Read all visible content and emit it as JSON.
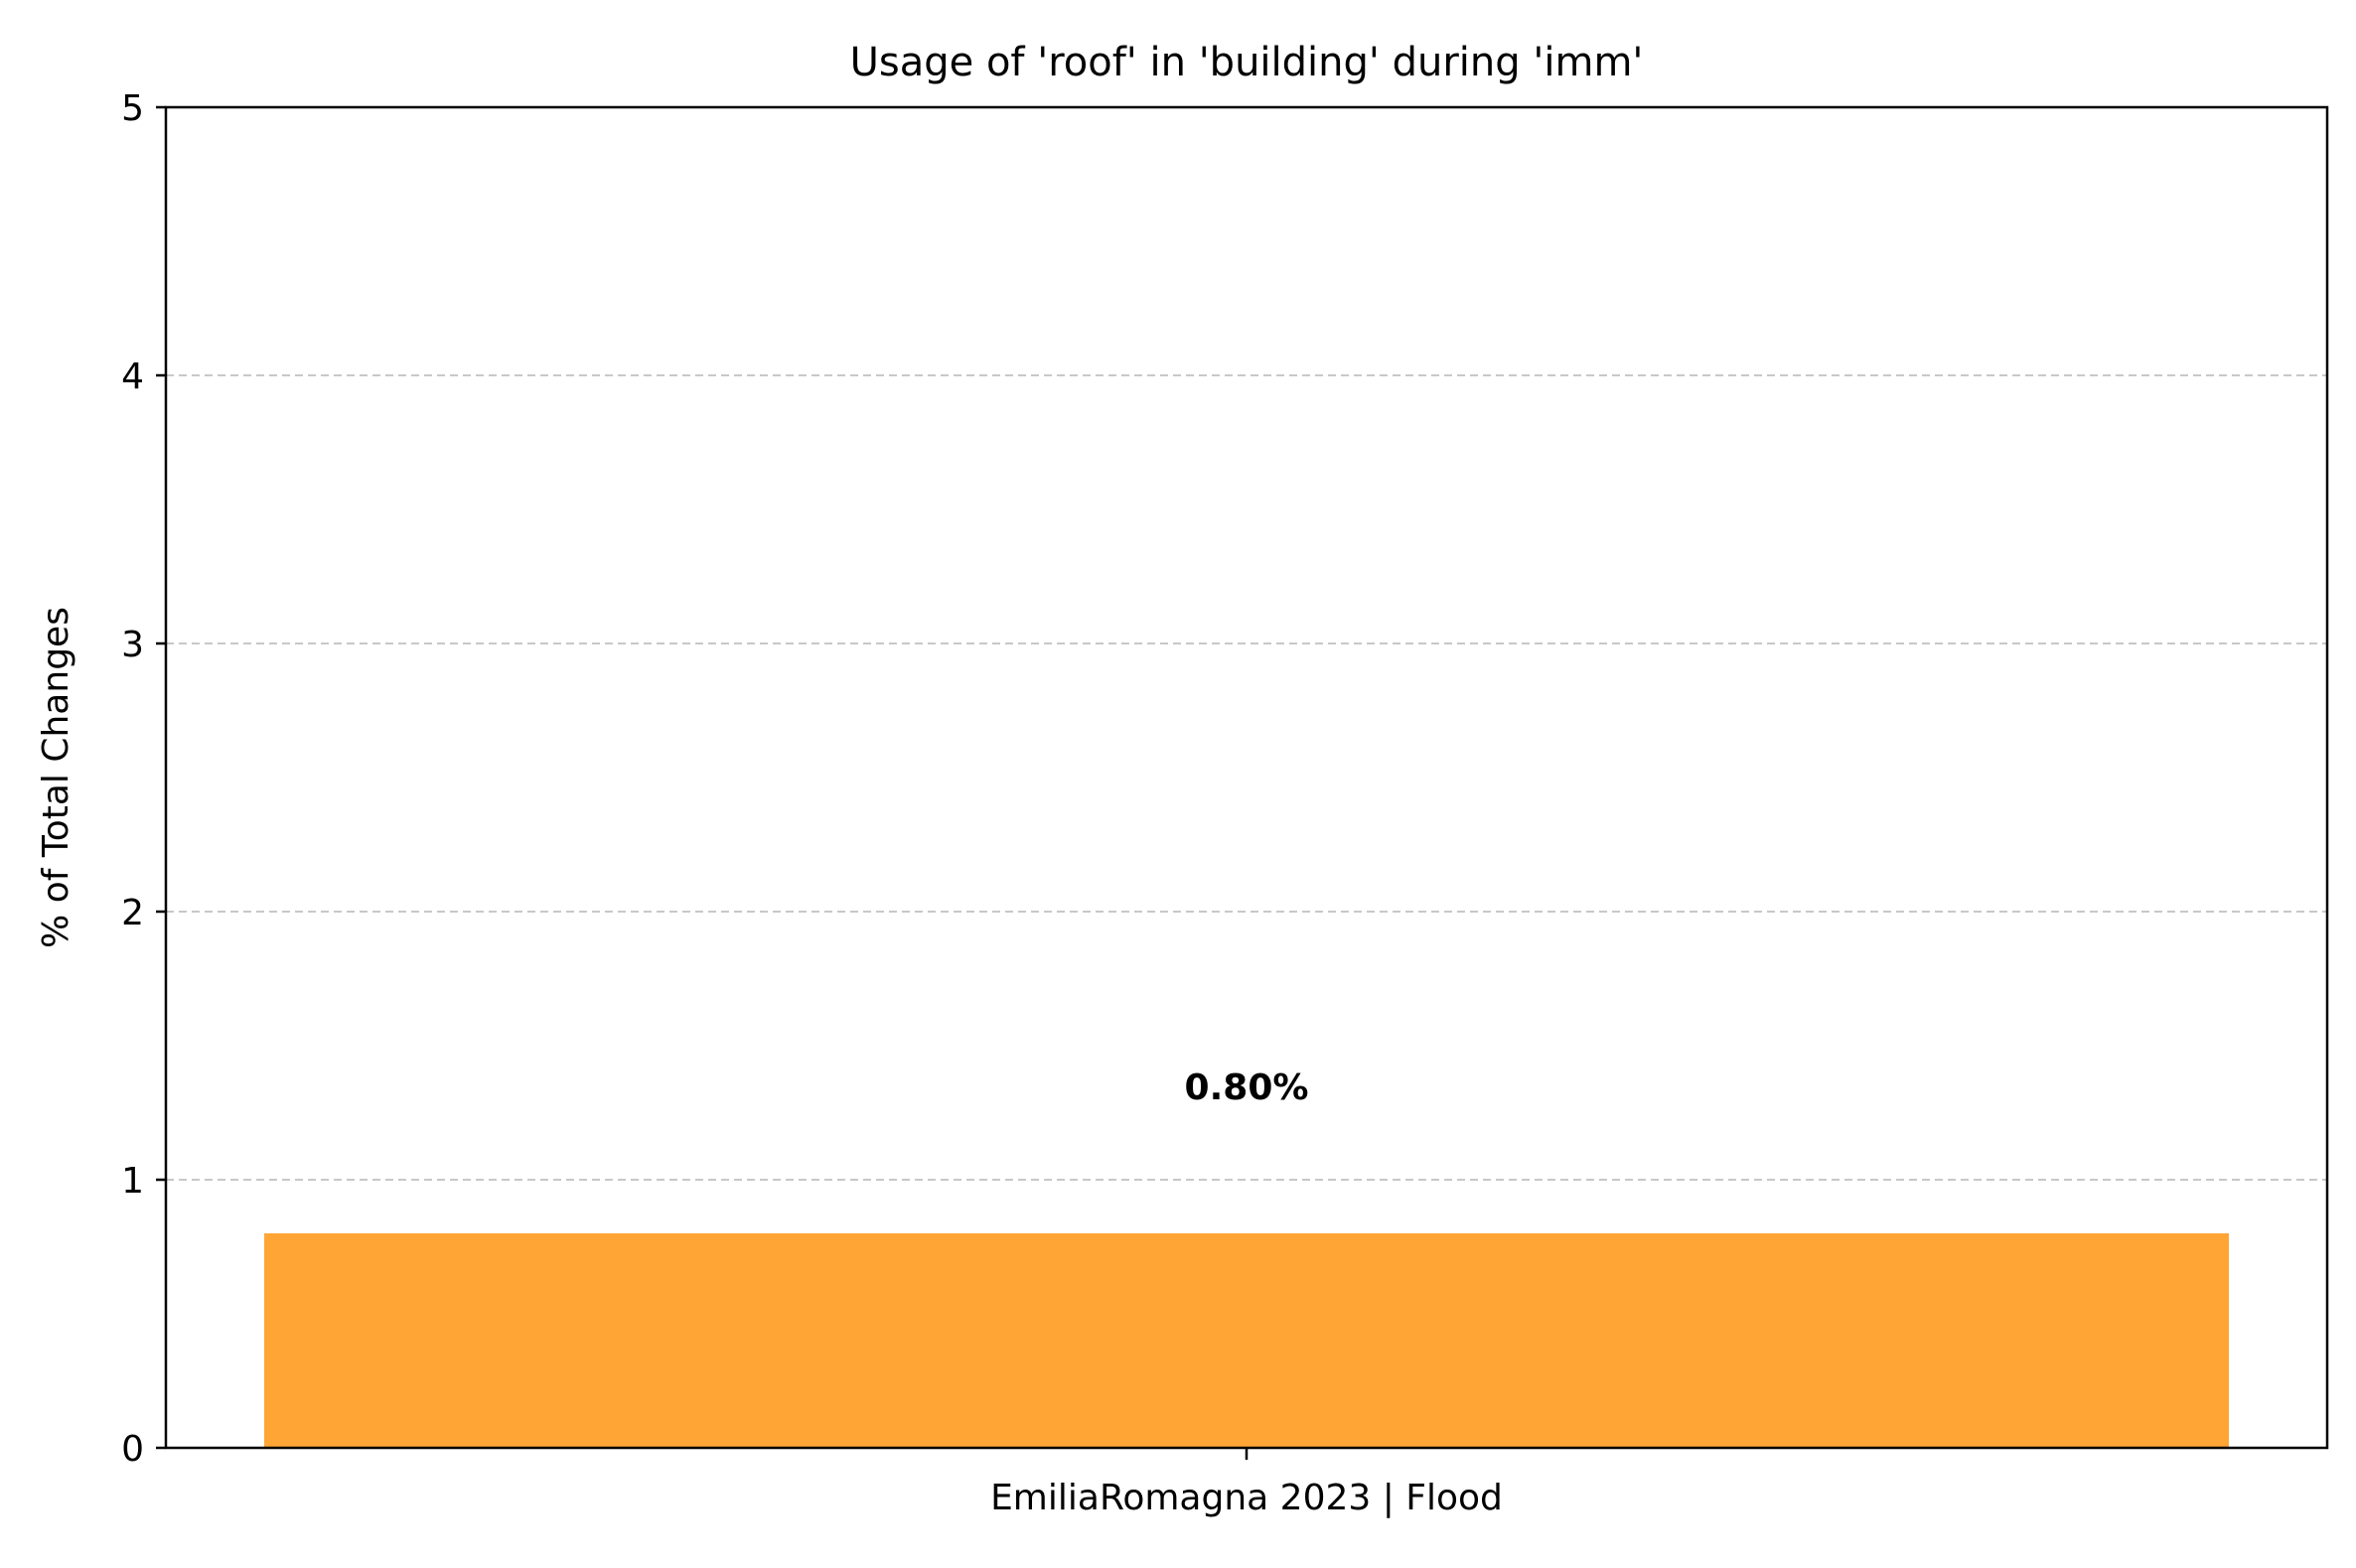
{
  "chart_data": {
    "type": "bar",
    "title": "Usage of 'roof' in 'building' during 'imm'",
    "xlabel": "",
    "ylabel": "% of Total Changes",
    "categories": [
      "EmiliaRomagna 2023 | Flood"
    ],
    "values": [
      0.8
    ],
    "data_labels": [
      "0.80%"
    ],
    "ylim": [
      0,
      5
    ],
    "yticks": [
      "0",
      "1",
      "2",
      "3",
      "4",
      "5"
    ],
    "grid": "y-dashed",
    "legend": "none",
    "colors": {
      "bar": "#FFA535",
      "grid": "#c8c8c8",
      "axis": "#000000"
    }
  }
}
